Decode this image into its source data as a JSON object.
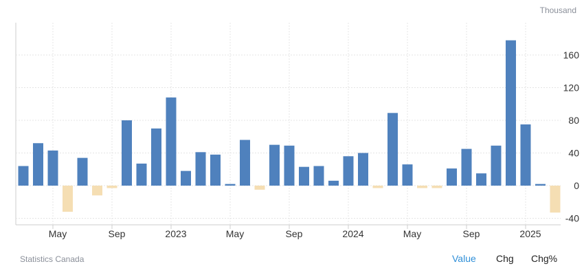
{
  "unit_label": "Thousand",
  "source": "Statistics Canada",
  "toggles": {
    "value": "Value",
    "chg": "Chg",
    "chg_pct": "Chg%"
  },
  "colors": {
    "positive": "#4f81bd",
    "negative": "#f5deb3",
    "grid": "#e4e4e4",
    "axis": "#cccccc"
  },
  "chart_data": {
    "type": "bar",
    "title": "",
    "xlabel": "",
    "ylabel": "",
    "ylim": [
      -45,
      195
    ],
    "yticks": [
      -40,
      0,
      40,
      80,
      120,
      160
    ],
    "x_tick_labels": [
      {
        "at": "2022-05",
        "label": "May"
      },
      {
        "at": "2022-09",
        "label": "Sep"
      },
      {
        "at": "2023-01",
        "label": "2023"
      },
      {
        "at": "2023-05",
        "label": "May"
      },
      {
        "at": "2023-09",
        "label": "Sep"
      },
      {
        "at": "2024-01",
        "label": "2024"
      },
      {
        "at": "2024-05",
        "label": "May"
      },
      {
        "at": "2024-09",
        "label": "Sep"
      },
      {
        "at": "2025-01",
        "label": "2025"
      }
    ],
    "categories": [
      "2022-03",
      "2022-04",
      "2022-05",
      "2022-06",
      "2022-07",
      "2022-08",
      "2022-09",
      "2022-10",
      "2022-11",
      "2022-12",
      "2023-01",
      "2023-02",
      "2023-03",
      "2023-04",
      "2023-05",
      "2023-06",
      "2023-07",
      "2023-08",
      "2023-09",
      "2023-10",
      "2023-11",
      "2023-12",
      "2024-01",
      "2024-02",
      "2024-03",
      "2024-04",
      "2024-05",
      "2024-06",
      "2024-07",
      "2024-08",
      "2024-09",
      "2024-10",
      "2024-11",
      "2024-12",
      "2025-01",
      "2025-02",
      "2025-03"
    ],
    "values": [
      24,
      52,
      43,
      -32,
      34,
      -12,
      -3,
      80,
      27,
      70,
      108,
      18,
      41,
      38,
      2,
      56,
      -5,
      50,
      49,
      23,
      24,
      6,
      36,
      40,
      -3,
      89,
      26,
      -3,
      -3,
      21,
      45,
      15,
      49,
      178,
      75,
      2,
      -33
    ]
  }
}
